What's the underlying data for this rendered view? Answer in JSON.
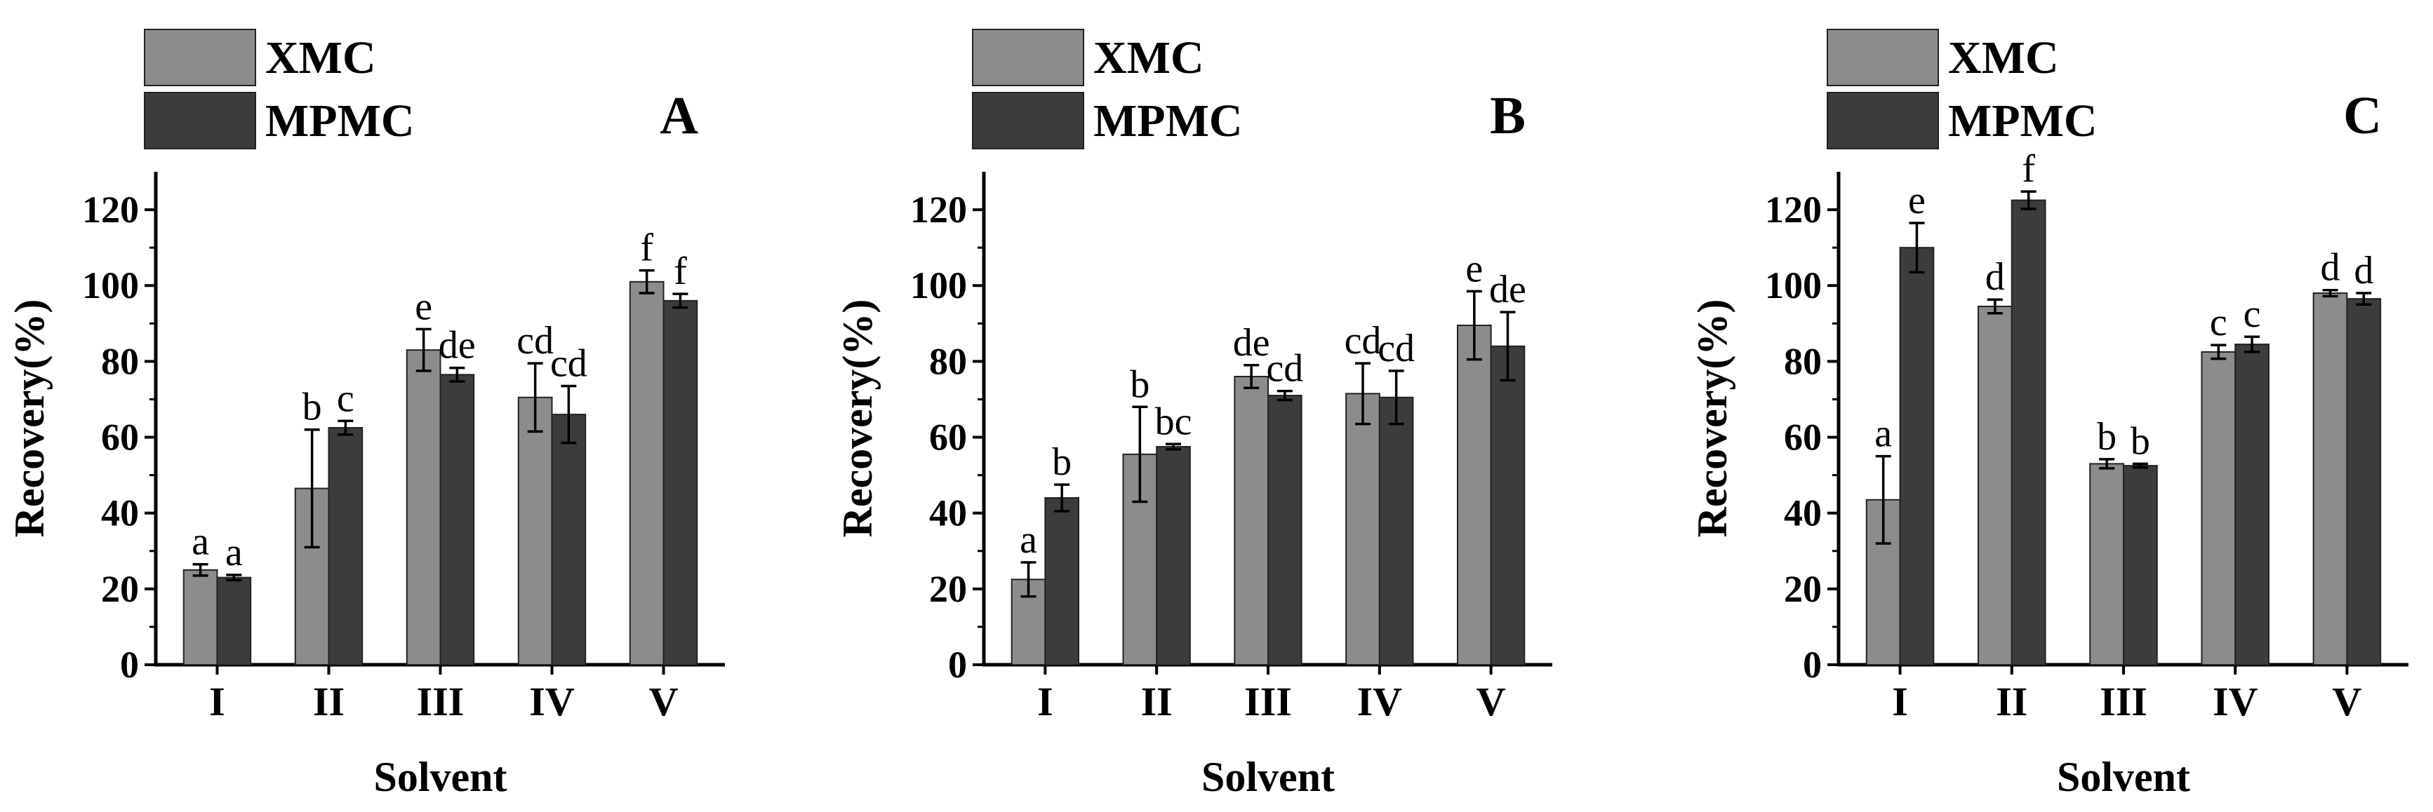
{
  "chart_data": [
    {
      "type": "bar",
      "panel_label": "A",
      "categories": [
        "I",
        "II",
        "III",
        "IV",
        "V"
      ],
      "xlabel": "Solvent",
      "ylabel": "Recovery(%)",
      "ylim": [
        0,
        130
      ],
      "yticks": [
        0,
        20,
        40,
        60,
        80,
        100,
        120
      ],
      "legend": "top-left",
      "series": [
        {
          "name": "XMC",
          "color": "#8c8c8c",
          "values": [
            25,
            46.5,
            83,
            70.5,
            101
          ],
          "errors": [
            1.5,
            15.5,
            5.5,
            9,
            3
          ],
          "labels": [
            "a",
            "b",
            "e",
            "cd",
            "f"
          ]
        },
        {
          "name": "MPMC",
          "color": "#3c3c3c",
          "values": [
            23,
            62.5,
            76.5,
            66,
            96
          ],
          "errors": [
            0.7,
            1.8,
            1.8,
            7.5,
            1.8
          ],
          "labels": [
            "a",
            "c",
            "de",
            "cd",
            "f"
          ]
        }
      ]
    },
    {
      "type": "bar",
      "panel_label": "B",
      "categories": [
        "I",
        "II",
        "III",
        "IV",
        "V"
      ],
      "xlabel": "Solvent",
      "ylabel": "Recovery(%)",
      "ylim": [
        0,
        130
      ],
      "yticks": [
        0,
        20,
        40,
        60,
        80,
        100,
        120
      ],
      "legend": "top-left",
      "series": [
        {
          "name": "XMC",
          "color": "#8c8c8c",
          "values": [
            22.5,
            55.5,
            76,
            71.5,
            89.5
          ],
          "errors": [
            4.5,
            12.5,
            3,
            8,
            9
          ],
          "labels": [
            "a",
            "b",
            "de",
            "cd",
            "e"
          ]
        },
        {
          "name": "MPMC",
          "color": "#3c3c3c",
          "values": [
            44,
            57.5,
            71,
            70.5,
            84
          ],
          "errors": [
            3.5,
            0.7,
            1.2,
            7,
            9
          ],
          "labels": [
            "b",
            "bc",
            "cd",
            "cd",
            "de"
          ]
        }
      ]
    },
    {
      "type": "bar",
      "panel_label": "C",
      "categories": [
        "I",
        "II",
        "III",
        "IV",
        "V"
      ],
      "xlabel": "Solvent",
      "ylabel": "Recovery(%)",
      "ylim": [
        0,
        130
      ],
      "yticks": [
        0,
        20,
        40,
        60,
        80,
        100,
        120
      ],
      "legend": "top-left",
      "series": [
        {
          "name": "XMC",
          "color": "#8c8c8c",
          "values": [
            43.5,
            94.5,
            53,
            82.5,
            98
          ],
          "errors": [
            11.5,
            1.8,
            1.2,
            1.8,
            0.8
          ],
          "labels": [
            "a",
            "d",
            "b",
            "c",
            "d"
          ]
        },
        {
          "name": "MPMC",
          "color": "#3c3c3c",
          "values": [
            110,
            122.5,
            52.5,
            84.5,
            96.5
          ],
          "errors": [
            6.5,
            2.3,
            0.5,
            2,
            1.5
          ],
          "labels": [
            "e",
            "f",
            "b",
            "c",
            "d"
          ]
        }
      ]
    }
  ]
}
